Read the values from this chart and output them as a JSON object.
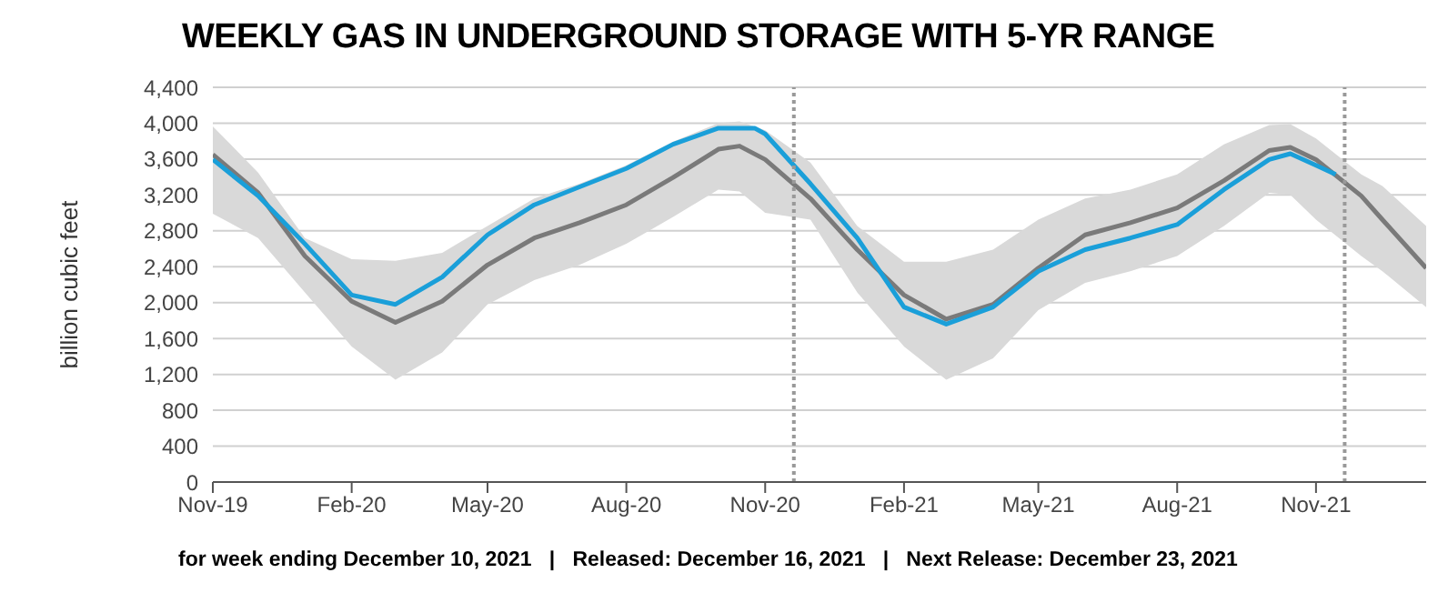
{
  "chart_data": {
    "type": "line",
    "title": "WEEKLY GAS IN UNDERGROUND STORAGE WITH 5-YR RANGE",
    "ylabel": "billion cubic feet",
    "annotations": [
      "for week ending December 10, 2021   |   Released: December 16, 2021   |   Next Release: December 23, 2021"
    ],
    "xlim": [
      "2019-11-01",
      "2022-01-13"
    ],
    "xticks": [
      {
        "value": "2019-11-01",
        "label": "Nov-19"
      },
      {
        "value": "2020-02-01",
        "label": "Feb-20"
      },
      {
        "value": "2020-05-01",
        "label": "May-20"
      },
      {
        "value": "2020-08-01",
        "label": "Aug-20"
      },
      {
        "value": "2020-11-01",
        "label": "Nov-20"
      },
      {
        "value": "2021-02-01",
        "label": "Feb-21"
      },
      {
        "value": "2021-05-01",
        "label": "May-21"
      },
      {
        "value": "2021-08-01",
        "label": "Aug-21"
      },
      {
        "value": "2021-11-01",
        "label": "Nov-21"
      }
    ],
    "ylim": [
      0,
      4400
    ],
    "yticks": [
      0,
      {
        "value": 400,
        "label": "400"
      },
      {
        "value": 800,
        "label": "800"
      },
      {
        "value": 1200,
        "label": "1,200"
      },
      {
        "value": 1600,
        "label": "1,600"
      },
      {
        "value": 2000,
        "label": "2,000"
      },
      {
        "value": 2400,
        "label": "2,400"
      },
      {
        "value": 2800,
        "label": "2,800"
      },
      {
        "value": 3200,
        "label": "3,200"
      },
      {
        "value": 3600,
        "label": "3,600"
      },
      {
        "value": 4000,
        "label": "4,000"
      },
      {
        "value": 4400,
        "label": "4,400"
      }
    ],
    "grid": "y",
    "legend": false,
    "marker": "none",
    "line_style": "solid",
    "ref_lines": [
      {
        "axis": "x",
        "value": "2020-11-20",
        "color": "#999999",
        "line_style": "dotted"
      },
      {
        "axis": "x",
        "value": "2021-11-20",
        "color": "#999999",
        "line_style": "dotted"
      }
    ],
    "series": [
      {
        "color": "#7a7a7a",
        "x": [
          "2019-11-01",
          "2019-12-01",
          "2020-01-01",
          "2020-02-01",
          "2020-03-01",
          "2020-04-01",
          "2020-05-01",
          "2020-06-01",
          "2020-07-01",
          "2020-08-01",
          "2020-09-01",
          "2020-10-01",
          "2020-10-15",
          "2020-11-01",
          "2020-12-01",
          "2021-01-01",
          "2021-02-01",
          "2021-03-01",
          "2021-04-01",
          "2021-05-01",
          "2021-06-01",
          "2021-07-01",
          "2021-08-01",
          "2021-09-01",
          "2021-10-01",
          "2021-10-15",
          "2021-11-01",
          "2021-12-01",
          "2021-12-15",
          "2022-01-13"
        ],
        "values": [
          3650,
          3225,
          2520,
          2015,
          1780,
          2015,
          2420,
          2720,
          2890,
          3090,
          3395,
          3710,
          3745,
          3595,
          3160,
          2590,
          2085,
          1815,
          1980,
          2385,
          2755,
          2890,
          3055,
          3360,
          3695,
          3730,
          3595,
          3190,
          2925,
          2385
        ],
        "lower": [
          2990,
          2720,
          2115,
          1510,
          1140,
          1445,
          1980,
          2250,
          2420,
          2655,
          2955,
          3260,
          3240,
          3000,
          2925,
          2115,
          1510,
          1140,
          1380,
          1915,
          2220,
          2350,
          2520,
          2855,
          3225,
          3200,
          2925,
          2520,
          2350,
          1950
        ],
        "upper": [
          3965,
          3450,
          2720,
          2485,
          2465,
          2555,
          2855,
          3160,
          3325,
          3530,
          3795,
          4000,
          4020,
          3920,
          3560,
          2855,
          2455,
          2455,
          2590,
          2925,
          3160,
          3260,
          3430,
          3765,
          3980,
          3990,
          3830,
          3430,
          3300,
          2855
        ]
      },
      {
        "color": "#1a9fd9",
        "x": [
          "2019-11-01",
          "2019-12-01",
          "2020-01-01",
          "2020-02-01",
          "2020-03-01",
          "2020-04-01",
          "2020-05-01",
          "2020-06-01",
          "2020-07-01",
          "2020-08-01",
          "2020-09-01",
          "2020-10-01",
          "2020-10-25",
          "2020-11-01",
          "2020-12-01",
          "2021-01-01",
          "2021-02-01",
          "2021-03-01",
          "2021-04-01",
          "2021-05-01",
          "2021-06-01",
          "2021-07-01",
          "2021-08-01",
          "2021-09-01",
          "2021-10-01",
          "2021-10-15",
          "2021-11-01",
          "2021-11-14"
        ],
        "values": [
          3595,
          3190,
          2655,
          2085,
          1980,
          2285,
          2755,
          3090,
          3290,
          3495,
          3765,
          3945,
          3945,
          3880,
          3325,
          2720,
          1950,
          1760,
          1950,
          2350,
          2590,
          2720,
          2870,
          3260,
          3595,
          3660,
          3530,
          3430
        ]
      }
    ]
  }
}
